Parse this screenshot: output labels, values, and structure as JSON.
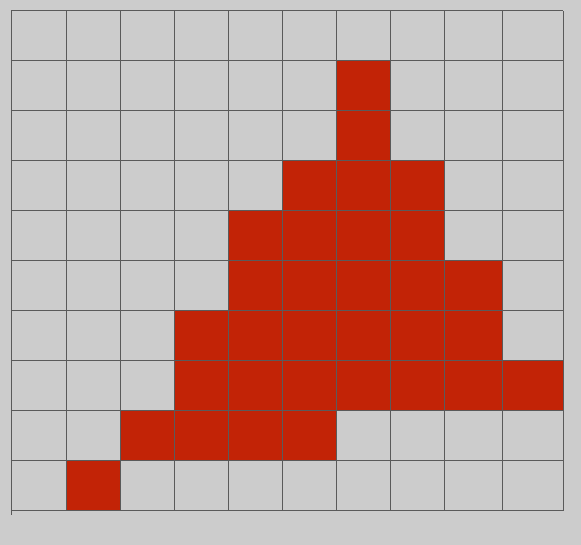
{
  "colors": {
    "background": "#cccccc",
    "empty_cell": "#cccccc",
    "filled_cell": "#c22306",
    "grid_line": "#5a5a5a"
  },
  "grid": {
    "rows": 10,
    "cols": 10,
    "filled": [
      [
        0,
        0,
        0,
        0,
        0,
        0,
        0,
        0,
        0,
        0
      ],
      [
        0,
        0,
        0,
        0,
        0,
        0,
        1,
        0,
        0,
        0
      ],
      [
        0,
        0,
        0,
        0,
        0,
        0,
        1,
        0,
        0,
        0
      ],
      [
        0,
        0,
        0,
        0,
        0,
        1,
        1,
        1,
        0,
        0
      ],
      [
        0,
        0,
        0,
        0,
        1,
        1,
        1,
        1,
        0,
        0
      ],
      [
        0,
        0,
        0,
        0,
        1,
        1,
        1,
        1,
        1,
        0
      ],
      [
        0,
        0,
        0,
        1,
        1,
        1,
        1,
        1,
        1,
        0
      ],
      [
        0,
        0,
        0,
        1,
        1,
        1,
        1,
        1,
        1,
        1
      ],
      [
        0,
        0,
        1,
        1,
        1,
        1,
        0,
        0,
        0,
        0
      ],
      [
        0,
        1,
        0,
        0,
        0,
        0,
        0,
        0,
        0,
        0
      ]
    ]
  }
}
